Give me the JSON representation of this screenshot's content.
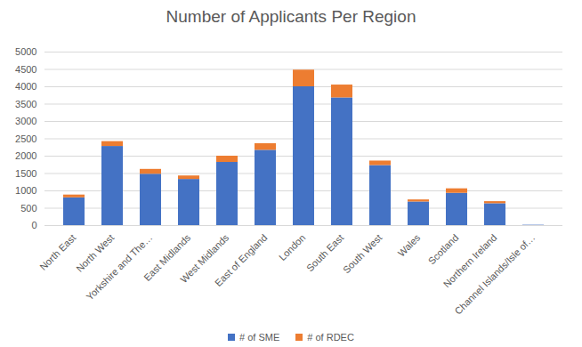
{
  "chart_data": {
    "type": "bar",
    "title": "Number of Applicants Per Region",
    "categories": [
      "North East",
      "North West",
      "Yorkshire and The…",
      "East Midlands",
      "West Midlands",
      "East of England",
      "London",
      "South East",
      "South West",
      "Wales",
      "Scotland",
      "Northern Ireland",
      "Channel Islands/Isle of…"
    ],
    "series": [
      {
        "name": "# of SME",
        "color": "#4472c4",
        "values": [
          800,
          2280,
          1480,
          1330,
          1820,
          2170,
          4000,
          3680,
          1730,
          680,
          930,
          630,
          10
        ]
      },
      {
        "name": "# of RDEC",
        "color": "#ed7d31",
        "values": [
          80,
          140,
          140,
          100,
          180,
          190,
          480,
          370,
          130,
          60,
          130,
          60,
          0
        ]
      }
    ],
    "stacked": true,
    "ylim": [
      0,
      5000
    ],
    "yticks": [
      0,
      500,
      1000,
      1500,
      2000,
      2500,
      3000,
      3500,
      4000,
      4500,
      5000
    ],
    "grid": true,
    "legend": "bottom"
  }
}
